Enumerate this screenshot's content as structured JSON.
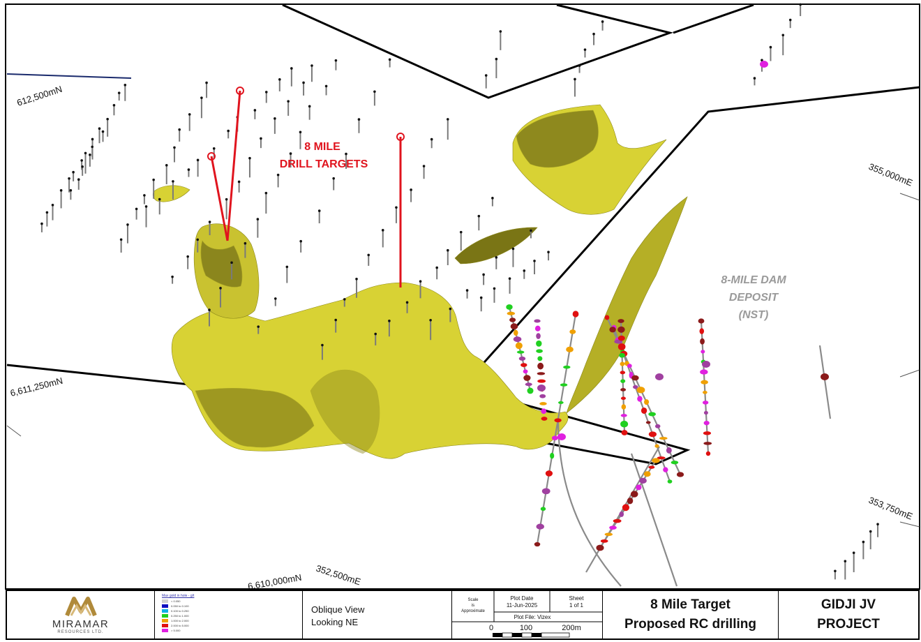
{
  "map": {
    "target_label_line1": "8 MILE",
    "target_label_line2": "DRILL TARGETS",
    "deposit_line1": "8-MILE DAM",
    "deposit_line2": "DEPOSIT",
    "deposit_line3": "(NST)",
    "grid_labels": {
      "n_612500": "612,500mN",
      "n_6611250": "6,611,250mN",
      "n_6610000": "6,610,000mN",
      "e_352500": "352,500mE",
      "e_353750": "353,750mE",
      "e_355000": "355,000mE"
    },
    "colors": {
      "orebody": "#d8d234",
      "orebody_dark": "#6f6a12",
      "target_line": "#e0141e",
      "boundary": "#000000",
      "road": "#1a2a6c"
    }
  },
  "footer": {
    "logo": {
      "name": "MIRAMAR",
      "sub": "RESOURCES LTD."
    },
    "legend": {
      "title": "Max gold in hole - g/t",
      "items": [
        {
          "label": "< 0.050",
          "color": "#d0d0d0"
        },
        {
          "label": "0.050 to 0.100",
          "color": "#1010c0"
        },
        {
          "label": "0.100 to 0.250",
          "color": "#10b0e8"
        },
        {
          "label": "0.250 to 1.000",
          "color": "#20d020"
        },
        {
          "label": "1.000 to 2.000",
          "color": "#f0a000"
        },
        {
          "label": "2.000 to 5.000",
          "color": "#e01010"
        },
        {
          "label": "> 5.000",
          "color": "#e020e0"
        }
      ]
    },
    "view_line1": "Oblique View",
    "view_line2": "Looking NE",
    "plot": {
      "scale_line1": "Scale",
      "scale_line2": "is",
      "scale_line3": "Approximate",
      "plot_date_label": "Plot Date",
      "plot_date": "11-Jun-2025",
      "sheet_label": "Sheet",
      "sheet": "1 of 1",
      "plot_file": "Plot File: Vizex",
      "scale_0": "0",
      "scale_100": "100",
      "scale_200": "200m"
    },
    "title_line1": "8 Mile Target",
    "title_line2": "Proposed RC drilling",
    "project_line1": "GIDJI JV",
    "project_line2": "PROJECT"
  }
}
